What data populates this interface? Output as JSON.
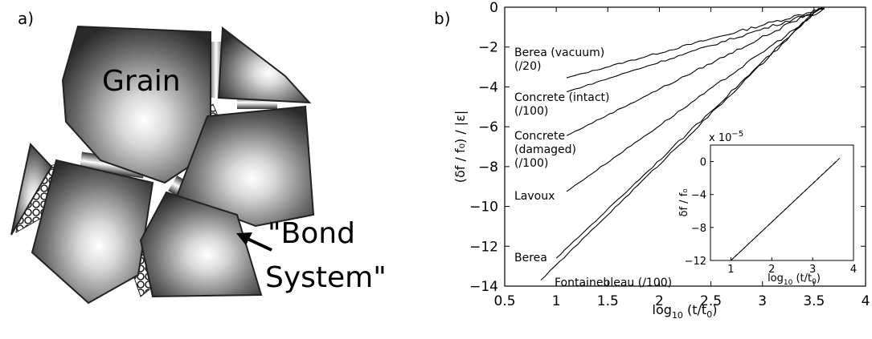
{
  "panel_a": {
    "letter": "a)",
    "grain_label": "Grain",
    "bond_label_line1": "\"Bond",
    "bond_label_line2": "System\""
  },
  "panel_b": {
    "letter": "b)"
  },
  "chart_data": [
    {
      "type": "line",
      "xlabel_main": "log",
      "xlabel_sub": "10",
      "xlabel_tail": " (t/t",
      "xlabel_sub2": "0",
      "xlabel_end": ")",
      "ylabel": "(δf / f₀) / |ε|",
      "xlim": [
        0.5,
        4
      ],
      "ylim": [
        -14,
        0
      ],
      "xticks": [
        "0.5",
        "1",
        "1.5",
        "2",
        "2.5",
        "3",
        "3.5",
        "4"
      ],
      "xtick_values": [
        0.5,
        1,
        1.5,
        2,
        2.5,
        3,
        3.5,
        4
      ],
      "yticks": [
        "0",
        "−2",
        "−4",
        "−6",
        "−8",
        "−10",
        "−12",
        "−14"
      ],
      "ytick_values": [
        0,
        -2,
        -4,
        -6,
        -8,
        -10,
        -12,
        -14
      ],
      "grid": false,
      "series": [
        {
          "label_lines": [
            "Berea (vacuum)",
            "(/20)"
          ],
          "x": [
            1.1,
            3.6
          ],
          "y": [
            -3.55,
            -0.05
          ]
        },
        {
          "label_lines": [
            "Concrete (intact)",
            "(/100)"
          ],
          "x": [
            1.1,
            3.6
          ],
          "y": [
            -4.25,
            -0.1
          ]
        },
        {
          "label_lines": [
            "Concrete",
            "(damaged)",
            "(/100)"
          ],
          "x": [
            1.1,
            3.58
          ],
          "y": [
            -6.45,
            0.0
          ]
        },
        {
          "label_lines": [
            "Lavoux"
          ],
          "x": [
            1.1,
            3.6
          ],
          "y": [
            -9.25,
            -0.05
          ]
        },
        {
          "label_lines": [
            "Berea"
          ],
          "x": [
            1.0,
            3.55
          ],
          "y": [
            -12.6,
            -0.05
          ]
        },
        {
          "label_lines": [
            "Fontainebleau (/100)"
          ],
          "x": [
            0.85,
            3.55
          ],
          "y": [
            -13.7,
            -0.05
          ]
        }
      ]
    },
    {
      "type": "line",
      "inset": true,
      "multiplier": "x 10",
      "multiplier_exp": "−5",
      "xlabel_main": "log",
      "xlabel_sub": "10",
      "xlabel_tail": " (t/t",
      "xlabel_sub2": "0",
      "xlabel_end": ")",
      "ylabel": "δf / f₀",
      "xlim": [
        0.5,
        4
      ],
      "ylim": [
        -12,
        2
      ],
      "xticks": [
        "1",
        "2",
        "3",
        "4"
      ],
      "xtick_values": [
        1,
        2,
        3,
        4
      ],
      "yticks": [
        "0",
        "−4",
        "−8",
        "−12"
      ],
      "ytick_values": [
        0,
        -4,
        -8,
        -12
      ],
      "series": [
        {
          "style": "solid",
          "x": [
            1.0,
            3.6
          ],
          "y": [
            -12,
            0.1
          ]
        },
        {
          "style": "dashed",
          "x": [
            1.0,
            3.7
          ],
          "y": [
            -12,
            0.6
          ]
        }
      ]
    }
  ]
}
